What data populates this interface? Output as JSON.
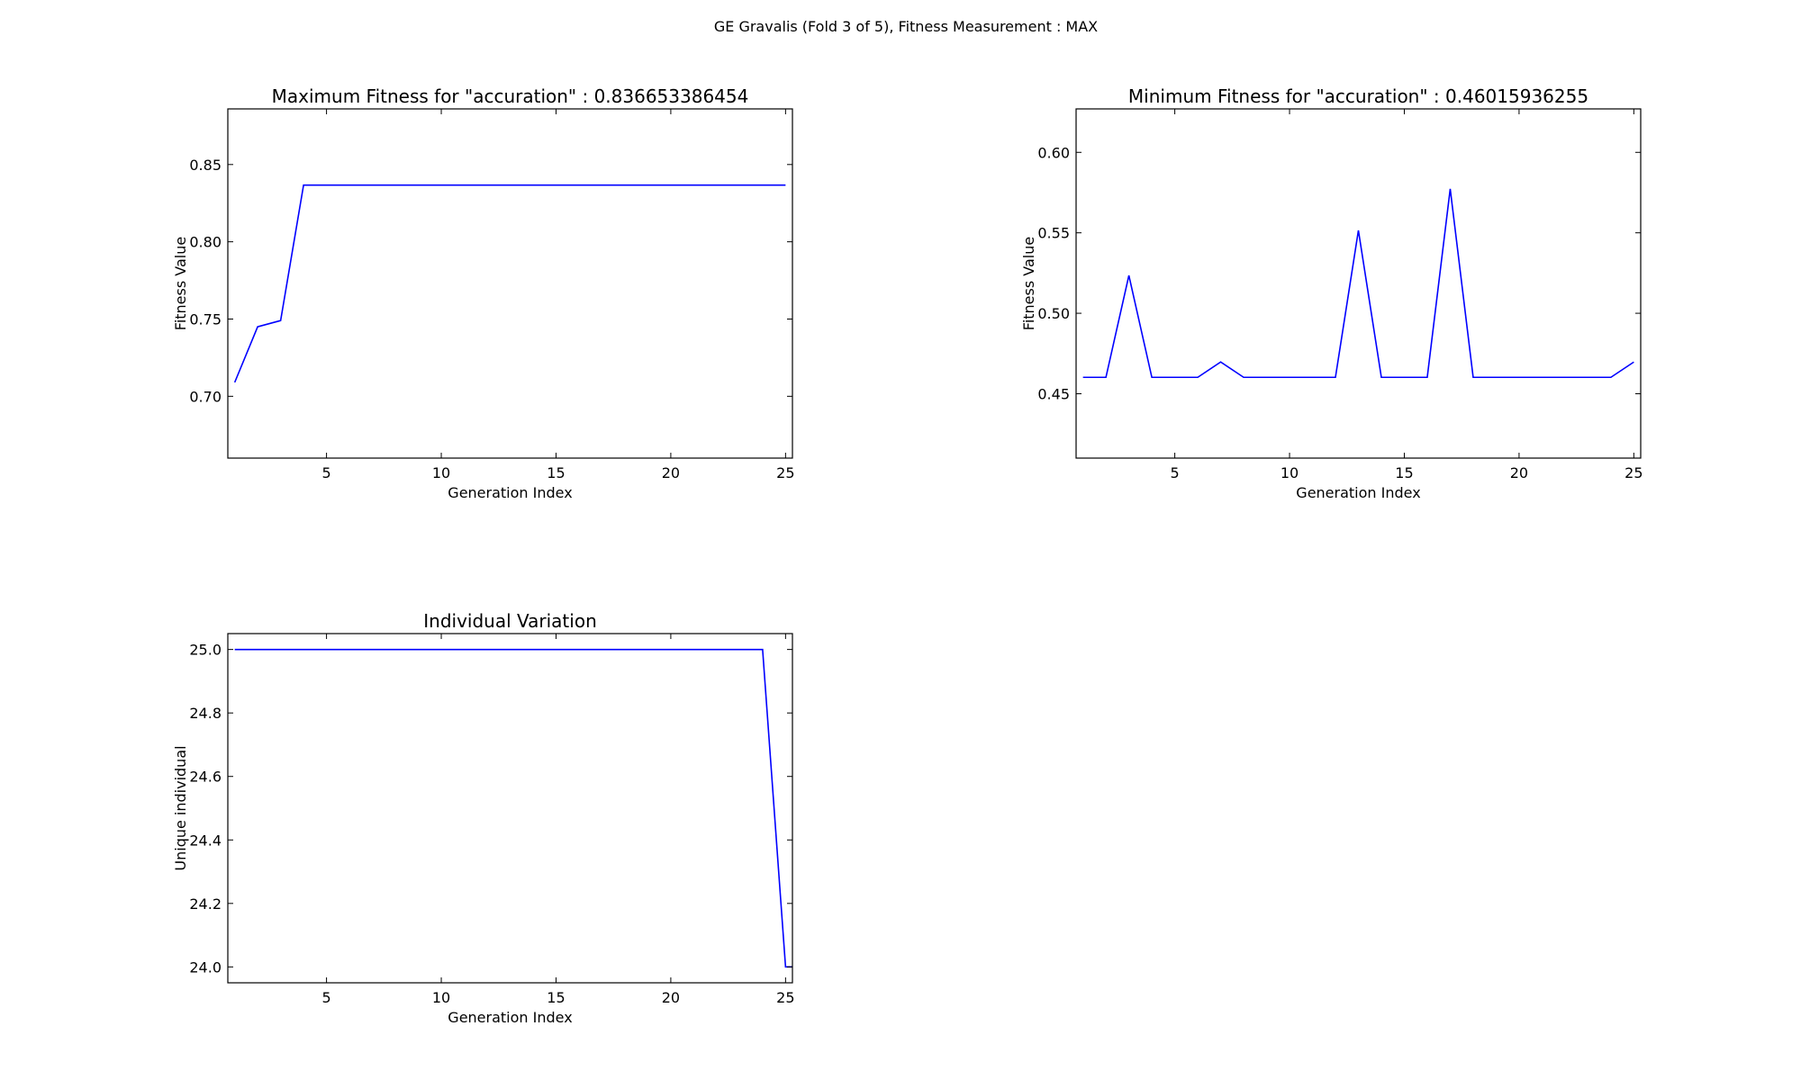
{
  "suptitle": "GE Gravalis (Fold 3 of 5), Fitness Measurement : MAX",
  "colors": {
    "line": "#0000ff",
    "axes": "#000000",
    "background": "#ffffff"
  },
  "chart_data": [
    {
      "id": "max-fitness",
      "type": "line",
      "title": "Maximum Fitness for \"accuration\" : 0.836653386454",
      "xlabel": "Generation Index",
      "ylabel": "Fitness Value",
      "xlim": [
        0.7,
        25.3
      ],
      "ylim": [
        0.66,
        0.886
      ],
      "xticks": [
        5,
        10,
        15,
        20,
        25
      ],
      "yticks": [
        0.7,
        0.75,
        0.8,
        0.85
      ],
      "ytick_labels": [
        "0.70",
        "0.75",
        "0.80",
        "0.85"
      ],
      "grid": false,
      "series": [
        {
          "x": [
            1,
            2,
            3,
            4,
            5,
            6,
            7,
            8,
            9,
            10,
            11,
            12,
            13,
            14,
            15,
            16,
            17,
            18,
            19,
            20,
            21,
            22,
            23,
            24,
            25
          ],
          "y": [
            0.709,
            0.745,
            0.749,
            0.8367,
            0.8367,
            0.8367,
            0.8367,
            0.8367,
            0.8367,
            0.8367,
            0.8367,
            0.8367,
            0.8367,
            0.8367,
            0.8367,
            0.8367,
            0.8367,
            0.8367,
            0.8367,
            0.8367,
            0.8367,
            0.8367,
            0.8367,
            0.8367,
            0.8367
          ]
        }
      ]
    },
    {
      "id": "min-fitness",
      "type": "line",
      "title": "Minimum Fitness for \"accuration\" : 0.46015936255",
      "xlabel": "Generation Index",
      "ylabel": "Fitness Value",
      "xlim": [
        0.7,
        25.3
      ],
      "ylim": [
        0.41,
        0.627
      ],
      "xticks": [
        5,
        10,
        15,
        20,
        25
      ],
      "yticks": [
        0.45,
        0.5,
        0.55,
        0.6
      ],
      "ytick_labels": [
        "0.45",
        "0.50",
        "0.55",
        "0.60"
      ],
      "grid": false,
      "series": [
        {
          "x": [
            1,
            2,
            3,
            4,
            5,
            6,
            7,
            8,
            9,
            10,
            11,
            12,
            13,
            14,
            15,
            16,
            17,
            18,
            19,
            20,
            21,
            22,
            23,
            24,
            25
          ],
          "y": [
            0.4602,
            0.4602,
            0.5235,
            0.4602,
            0.4602,
            0.4602,
            0.4697,
            0.4602,
            0.4602,
            0.4602,
            0.4602,
            0.4602,
            0.5515,
            0.4602,
            0.4602,
            0.4602,
            0.5773,
            0.4602,
            0.4602,
            0.4602,
            0.4602,
            0.4602,
            0.4602,
            0.4602,
            0.4697
          ]
        }
      ]
    },
    {
      "id": "individual-variation",
      "type": "line",
      "title": "Individual Variation",
      "xlabel": "Generation Index",
      "ylabel": "Unique individual",
      "xlim": [
        0.7,
        25.3
      ],
      "ylim": [
        23.95,
        25.05
      ],
      "xticks": [
        5,
        10,
        15,
        20,
        25
      ],
      "yticks": [
        24.0,
        24.2,
        24.4,
        24.6,
        24.8,
        25.0
      ],
      "ytick_labels": [
        "24.0",
        "24.2",
        "24.4",
        "24.6",
        "24.8",
        "25.0"
      ],
      "grid": false,
      "series": [
        {
          "x": [
            1,
            2,
            3,
            4,
            5,
            6,
            7,
            8,
            9,
            10,
            11,
            12,
            13,
            14,
            15,
            16,
            17,
            18,
            19,
            20,
            21,
            22,
            23,
            24,
            25,
            25.3
          ],
          "y": [
            25,
            25,
            25,
            25,
            25,
            25,
            25,
            25,
            25,
            25,
            25,
            25,
            25,
            25,
            25,
            25,
            25,
            25,
            25,
            25,
            25,
            25,
            25,
            25,
            24,
            24
          ]
        }
      ]
    }
  ]
}
